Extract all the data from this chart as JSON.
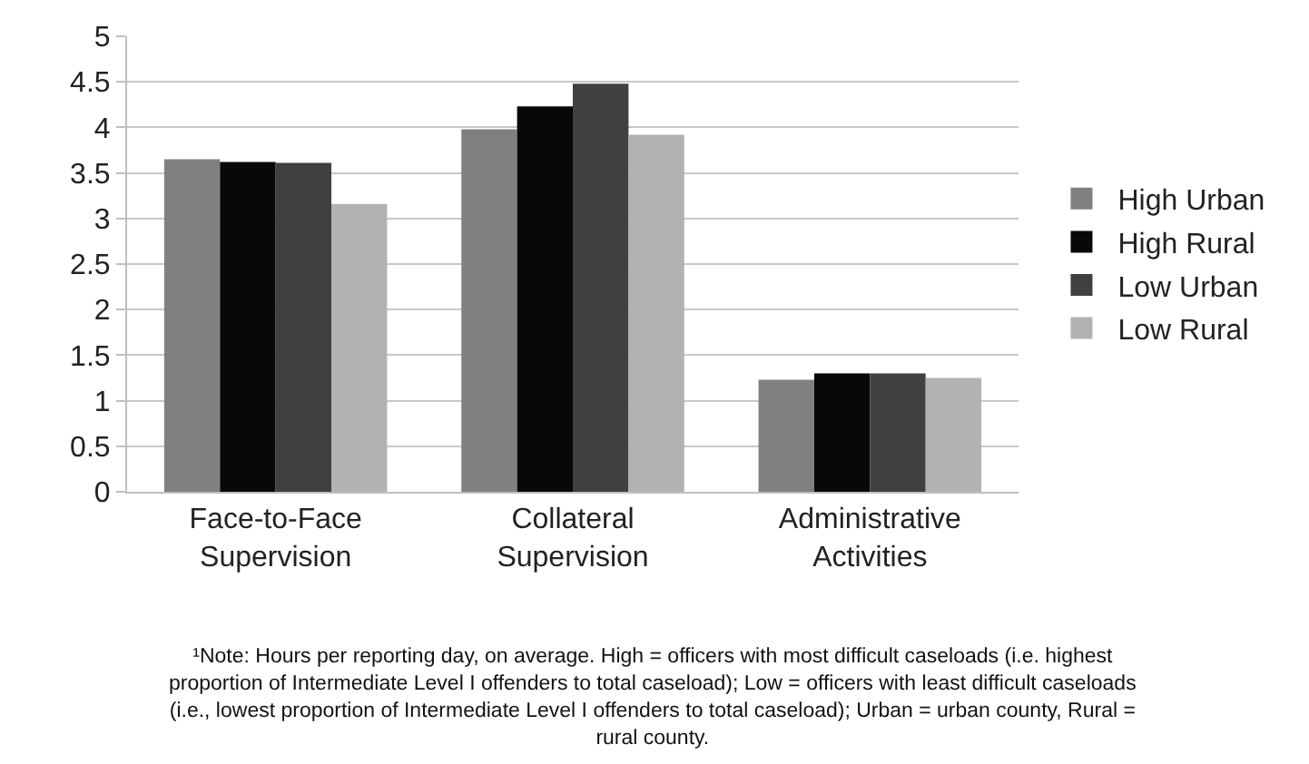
{
  "chart_data": {
    "type": "bar",
    "categories": [
      "Face-to-Face\nSupervision",
      "Collateral\nSupervision",
      "Administrative\nActivities"
    ],
    "series": [
      {
        "name": "High Urban",
        "color": "#808080",
        "values": [
          3.65,
          3.98,
          1.23
        ]
      },
      {
        "name": "High Rural",
        "color": "#080808",
        "values": [
          3.62,
          4.23,
          1.3
        ]
      },
      {
        "name": "Low Urban",
        "color": "#404040",
        "values": [
          3.61,
          4.48,
          1.3
        ]
      },
      {
        "name": "Low Rural",
        "color": "#b2b2b2",
        "values": [
          3.16,
          3.92,
          1.25
        ]
      }
    ],
    "ylim": [
      0,
      5
    ],
    "yticks": [
      0,
      0.5,
      1,
      1.5,
      2,
      2.5,
      3,
      3.5,
      4,
      4.5,
      5
    ],
    "grid": "y",
    "legend": "right",
    "annotations": [
      "¹Note: Hours per reporting day, on average. High = officers with most difficult caseloads (i.e. highest\nproportion of Intermediate Level I offenders to total caseload); Low = officers with least difficult caseloads\n(i.e., lowest proportion of Intermediate Level I offenders to total caseload); Urban = urban county, Rural =\nrural county."
    ]
  }
}
